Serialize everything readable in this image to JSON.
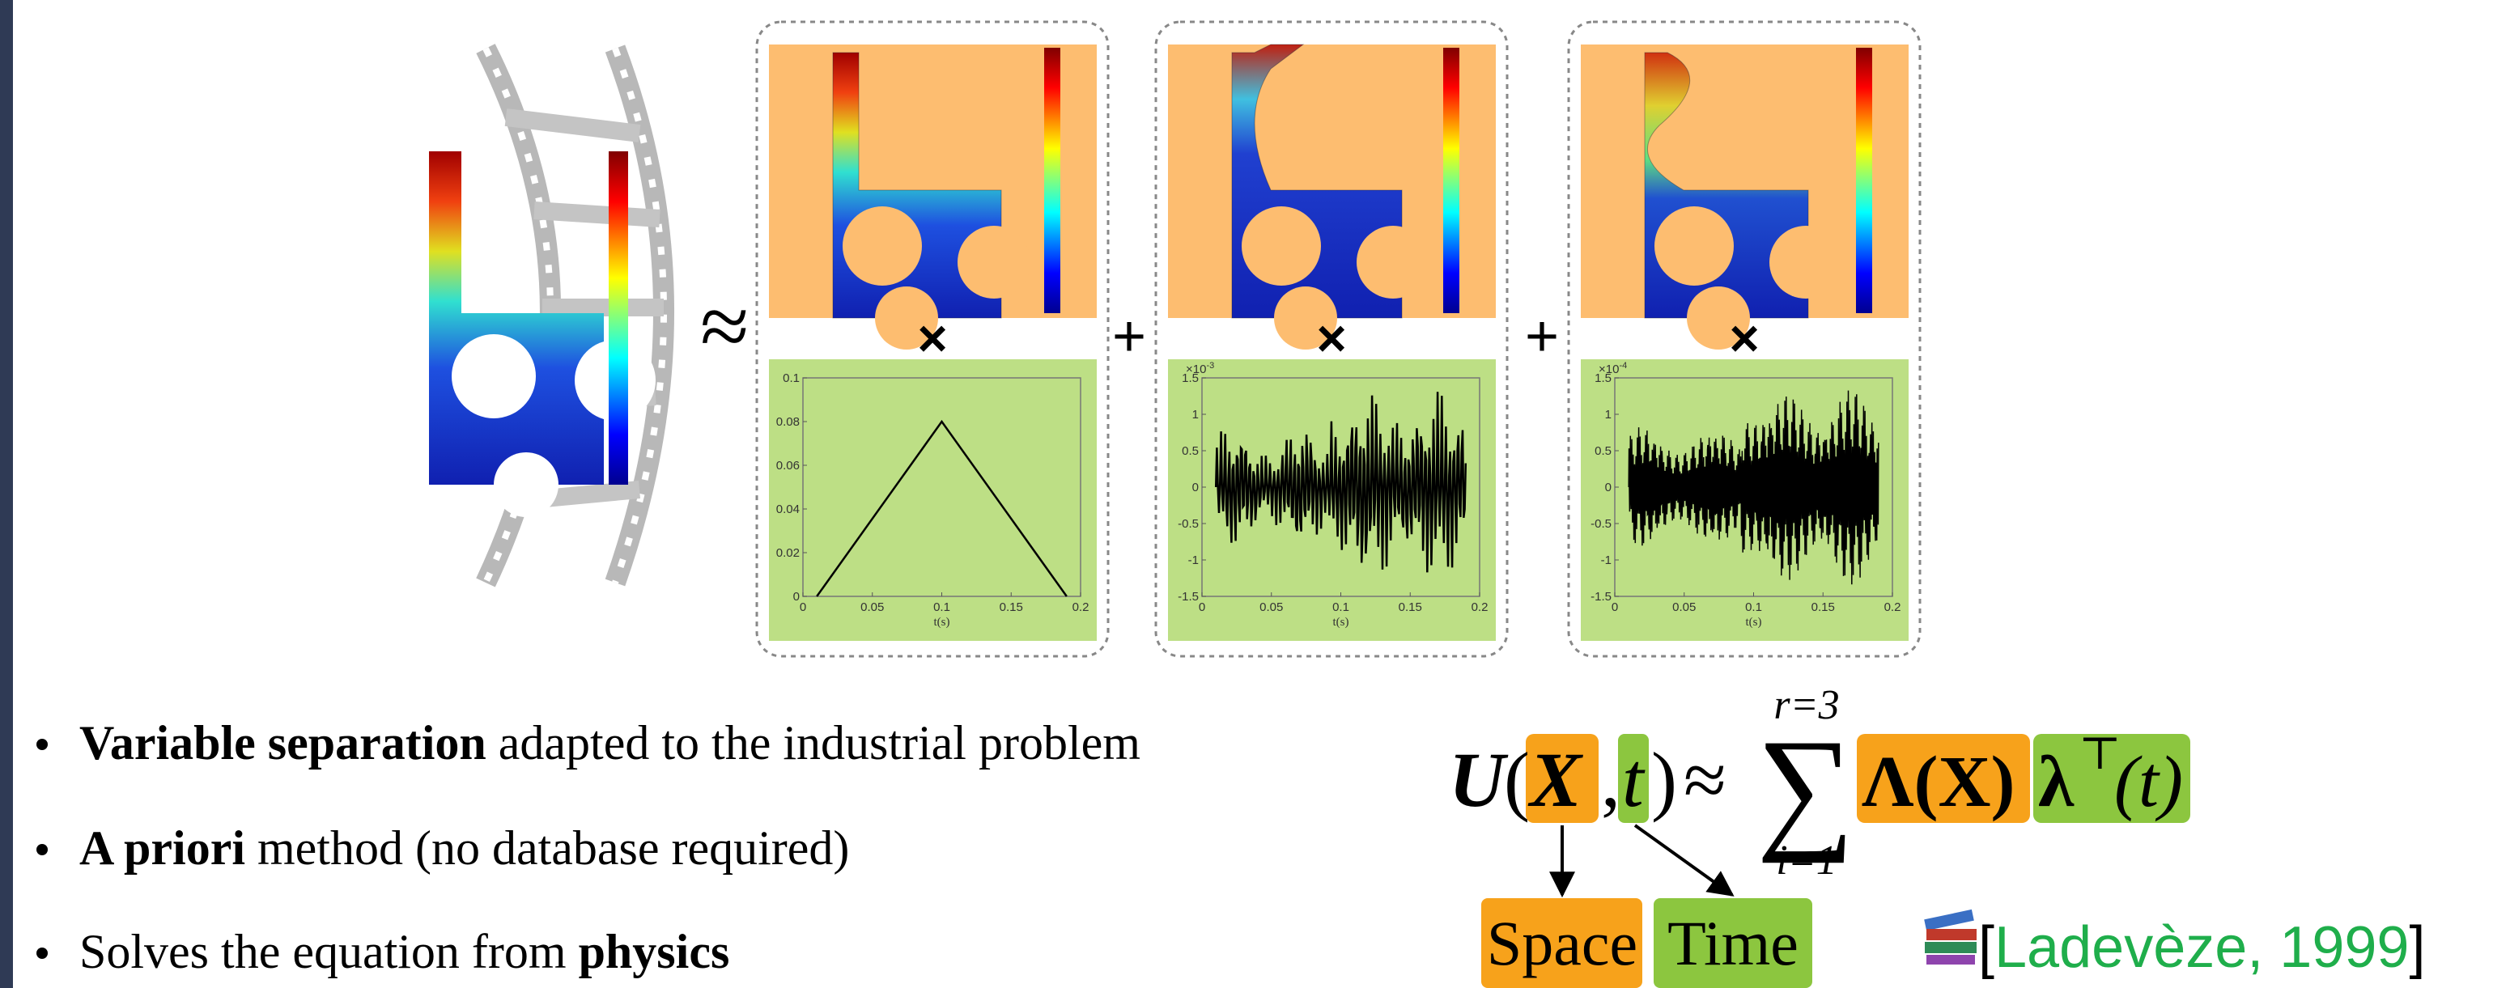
{
  "slide": {
    "operators": {
      "approx": "≈",
      "times": "×",
      "plus": "+"
    },
    "mini_plots": [
      {
        "ylim": [
          0,
          0.1
        ],
        "yticks": [
          0,
          0.02,
          0.04,
          0.06,
          0.08,
          0.1
        ],
        "xlim": [
          0,
          0.2
        ],
        "xticks": [
          0,
          0.05,
          0.1,
          0.15,
          0.2
        ],
        "xlabel": "t(s)",
        "line": {
          "x": [
            0.01,
            0.1,
            0.19
          ],
          "y": [
            0,
            0.08,
            0
          ]
        }
      },
      {
        "ylim": [
          -1.5,
          1.5
        ],
        "yticks": [
          -1.5,
          -1,
          -0.5,
          0,
          0.5,
          1,
          1.5
        ],
        "xlim": [
          0,
          0.2
        ],
        "xticks": [
          0,
          0.05,
          0.1,
          0.15,
          0.2
        ],
        "xlabel": "t(s)",
        "multiplier": {
          "base": "×10",
          "exp": "-3"
        }
      },
      {
        "ylim": [
          -1.5,
          1.5
        ],
        "yticks": [
          -1.5,
          -1,
          -0.5,
          0,
          0.5,
          1,
          1.5
        ],
        "xlim": [
          0,
          0.2
        ],
        "xticks": [
          0,
          0.05,
          0.1,
          0.15,
          0.2
        ],
        "xlabel": "t(s)",
        "multiplier": {
          "base": "×10",
          "exp": "-4"
        }
      }
    ],
    "bullets": [
      [
        {
          "text": "Variable separation",
          "bold": true
        },
        {
          "text": " adapted to the industrial problem",
          "bold": false
        }
      ],
      [
        {
          "text": "A priori",
          "bold": true
        },
        {
          "text": " method (no database required)",
          "bold": false
        }
      ],
      [
        {
          "text": "Solves the equation from ",
          "bold": false
        },
        {
          "text": "physics",
          "bold": true
        }
      ]
    ],
    "formula": {
      "fn": "U",
      "open": "(",
      "space_var": "X",
      "comma": ",",
      "time_var": "t",
      "close": ")",
      "approx": "≈",
      "sum": "∑",
      "sum_upper": "r=3",
      "sum_lower": "i=1",
      "space_mode": "Λ(X)",
      "time_mode": "λ",
      "transpose": "⊤",
      "time_arg": "(t)"
    },
    "labels": {
      "space": "Space",
      "time": "Time"
    },
    "citation": {
      "open": "[",
      "text": "Ladevèze, 1999",
      "close": "]"
    }
  }
}
